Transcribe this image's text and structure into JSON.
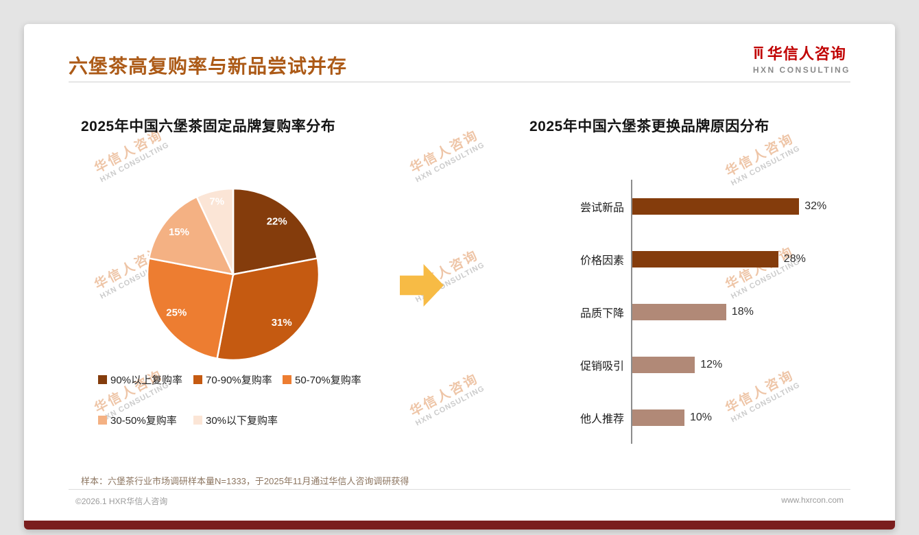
{
  "page": {
    "title": "六堡茶高复购率与新品尝试并存",
    "sample_note": "样本：六堡茶行业市场调研样本量N=1333，于2025年11月通过华信人咨询调研获得",
    "footer_left": "©2026.1 HXR华信人咨询",
    "footer_right": "www.hxrcon.com"
  },
  "logo": {
    "name": "华信人咨询",
    "subtitle": "HXN CONSULTING"
  },
  "watermark": {
    "line1": "华信人咨询",
    "line2": "HXN CONSULTING"
  },
  "colors": {
    "title": "#AC5A17",
    "logo_red": "#C00000",
    "bottom_bar": "#7A1E1E",
    "arrow": "#F7BB45"
  },
  "chart_data": [
    {
      "type": "pie",
      "title": "2025年中国六堡茶固定品牌复购率分布",
      "labels": [
        "90%以上复购率",
        "70-90%复购率",
        "50-70%复购率",
        "30-50%复购率",
        "30%以下复购率"
      ],
      "values": [
        22,
        31,
        25,
        15,
        7
      ],
      "value_labels": [
        "22%",
        "31%",
        "25%",
        "15%",
        "7%"
      ],
      "colors": [
        "#843C0C",
        "#C55A11",
        "#ED7D31",
        "#F4B183",
        "#FBE5D6"
      ],
      "start_angle_deg": 0,
      "direction": "clockwise",
      "legend_position": "bottom"
    },
    {
      "type": "bar",
      "orientation": "horizontal",
      "title": "2025年中国六堡茶更换品牌原因分布",
      "categories": [
        "尝试新品",
        "价格因素",
        "品质下降",
        "促销吸引",
        "他人推荐"
      ],
      "values": [
        32,
        28,
        18,
        12,
        10
      ],
      "value_labels": [
        "32%",
        "28%",
        "18%",
        "12%",
        "10%"
      ],
      "bar_colors": [
        "#843C0C",
        "#843C0C",
        "#B18977",
        "#B18977",
        "#B18977"
      ],
      "xlim": [
        0,
        35
      ],
      "grid": false
    }
  ]
}
